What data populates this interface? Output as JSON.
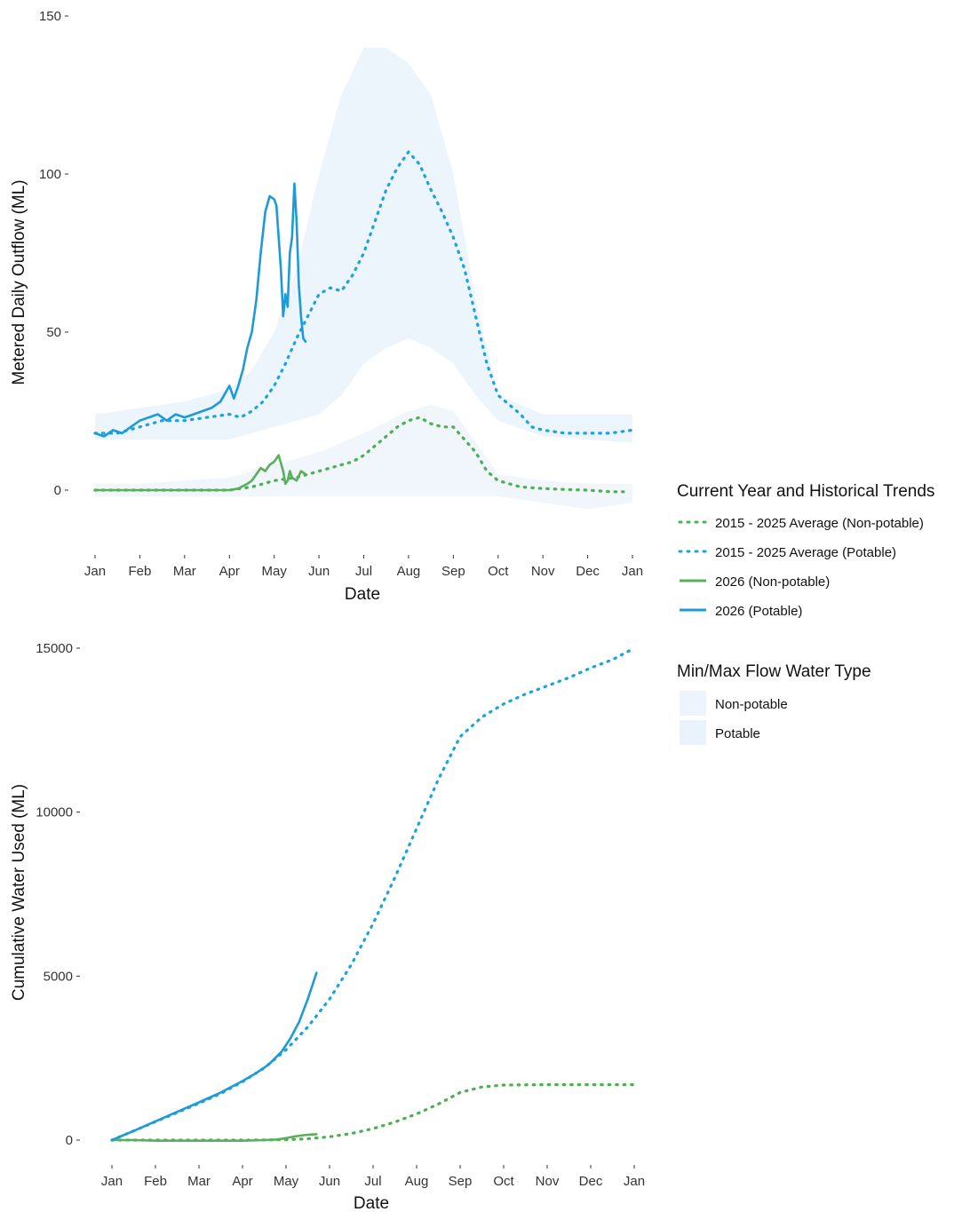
{
  "legend": {
    "lines_title": "Current Year and Historical Trends",
    "lines": [
      {
        "label": "2015 - 2025 Average (Non-potable)",
        "color": "#4CAF50",
        "style": "dotted"
      },
      {
        "label": "2015 - 2025 Average (Potable)",
        "color": "#1CA3DE",
        "style": "dotted"
      },
      {
        "label": "2026 (Non-potable)",
        "color": "#5BAF5B",
        "style": "solid"
      },
      {
        "label": "2026 (Potable)",
        "color": "#1E9AD6",
        "style": "solid"
      }
    ],
    "fills_title": "Min/Max Flow Water Type",
    "fills": [
      {
        "label": "Non-potable",
        "color": "#EDF4FB"
      },
      {
        "label": "Potable",
        "color": "#EAF3FC"
      }
    ]
  },
  "chart_data": [
    {
      "type": "line",
      "xlabel": "Date",
      "ylabel": "Metered Daily Outflow (ML)",
      "x_ticks": [
        "Jan",
        "Feb",
        "Mar",
        "Apr",
        "May",
        "Jun",
        "Jul",
        "Aug",
        "Sep",
        "Oct",
        "Nov",
        "Dec",
        "Jan"
      ],
      "y_ticks": [
        "0",
        "50",
        "100",
        "150"
      ],
      "xlim": [
        0,
        12
      ],
      "ylim": [
        -20,
        150
      ],
      "grid": false,
      "bands": [
        {
          "name": "Potable",
          "color": "#EAF3FC",
          "x": [
            0,
            1,
            2,
            3,
            3.5,
            4,
            4.5,
            5,
            5.5,
            6,
            6.5,
            7,
            7.5,
            8,
            8.5,
            9,
            10,
            11,
            12
          ],
          "lower": [
            16,
            16,
            16,
            16,
            18,
            20,
            22,
            24,
            30,
            40,
            45,
            48,
            45,
            40,
            30,
            22,
            17,
            16,
            15
          ],
          "upper": [
            24,
            26,
            28,
            32,
            38,
            50,
            70,
            100,
            125,
            140,
            140,
            135,
            125,
            100,
            60,
            30,
            24,
            24,
            24
          ]
        },
        {
          "name": "Non-potable",
          "color": "#EDF4FB",
          "x": [
            0,
            1,
            2,
            3,
            4,
            5,
            6,
            7,
            7.5,
            8,
            8.5,
            9,
            10,
            11,
            12
          ],
          "lower": [
            -2,
            -2,
            -2,
            -2,
            -2,
            -2,
            -2,
            -2,
            -2,
            -2,
            -2,
            -2,
            -4,
            -6,
            -4
          ],
          "upper": [
            2,
            2,
            3,
            4,
            8,
            12,
            18,
            25,
            27,
            25,
            15,
            5,
            3,
            2,
            2
          ]
        }
      ],
      "series": [
        {
          "name": "2015 - 2025 Average (Non-potable)",
          "color": "#4CAF50",
          "style": "dotted",
          "x": [
            0,
            0.5,
            1,
            1.5,
            2,
            2.5,
            3,
            3.25,
            3.5,
            3.75,
            4,
            4.25,
            4.5,
            4.75,
            5,
            5.25,
            5.5,
            5.75,
            6,
            6.25,
            6.5,
            6.75,
            7,
            7.25,
            7.5,
            7.75,
            8,
            8.25,
            8.5,
            8.75,
            9,
            9.5,
            10,
            10.5,
            11,
            11.5,
            11.8
          ],
          "y": [
            0,
            0,
            0,
            0,
            0,
            0,
            0,
            0.5,
            1,
            2,
            3,
            3.5,
            4,
            5,
            6,
            7,
            8,
            9,
            11,
            14,
            17,
            20,
            22,
            23,
            21,
            20,
            20,
            16,
            12,
            6,
            3,
            1,
            0.5,
            0.2,
            0,
            -0.5,
            -0.5
          ]
        },
        {
          "name": "2015 - 2025 Average (Potable)",
          "color": "#1CA3DE",
          "style": "dotted",
          "x": [
            0,
            0.5,
            1,
            1.5,
            2,
            2.5,
            3,
            3.25,
            3.5,
            3.75,
            4,
            4.25,
            4.5,
            4.75,
            5,
            5.25,
            5.5,
            5.75,
            6,
            6.25,
            6.5,
            6.75,
            7,
            7.25,
            7.5,
            7.75,
            8,
            8.25,
            8.5,
            8.75,
            9,
            9.25,
            9.5,
            9.75,
            10,
            10.5,
            11,
            11.5,
            12
          ],
          "y": [
            18,
            18,
            20,
            22,
            22,
            23,
            24,
            23,
            25,
            28,
            33,
            40,
            48,
            55,
            62,
            64,
            63,
            68,
            75,
            85,
            95,
            102,
            107,
            103,
            95,
            88,
            80,
            70,
            55,
            40,
            30,
            27,
            24,
            20,
            19,
            18,
            18,
            18,
            19
          ]
        },
        {
          "name": "2026 (Non-potable)",
          "color": "#5BAF5B",
          "style": "solid",
          "x": [
            0,
            0.5,
            1,
            1.5,
            2,
            2.5,
            3,
            3.2,
            3.4,
            3.5,
            3.6,
            3.7,
            3.8,
            3.9,
            4.0,
            4.1,
            4.2,
            4.25,
            4.3,
            4.35,
            4.4,
            4.5,
            4.6,
            4.7
          ],
          "y": [
            0,
            0,
            0,
            0,
            0,
            0,
            0,
            0.5,
            2,
            3,
            5,
            7,
            6,
            8,
            9,
            11,
            6,
            2,
            3,
            6,
            4,
            3,
            6,
            5
          ]
        },
        {
          "name": "2026 (Potable)",
          "color": "#1E9AD6",
          "style": "solid",
          "x": [
            0,
            0.2,
            0.4,
            0.6,
            0.8,
            1.0,
            1.2,
            1.4,
            1.6,
            1.8,
            2.0,
            2.2,
            2.4,
            2.6,
            2.8,
            3.0,
            3.1,
            3.2,
            3.3,
            3.4,
            3.5,
            3.6,
            3.7,
            3.8,
            3.9,
            4.0,
            4.05,
            4.1,
            4.15,
            4.2,
            4.25,
            4.3,
            4.35,
            4.4,
            4.45,
            4.5,
            4.55,
            4.6,
            4.65,
            4.7
          ],
          "y": [
            18,
            17,
            19,
            18,
            20,
            22,
            23,
            24,
            22,
            24,
            23,
            24,
            25,
            26,
            28,
            33,
            29,
            33,
            38,
            45,
            50,
            60,
            75,
            88,
            93,
            92,
            90,
            80,
            70,
            55,
            62,
            58,
            75,
            80,
            97,
            85,
            65,
            55,
            48,
            47
          ]
        }
      ]
    },
    {
      "type": "line",
      "xlabel": "Date",
      "ylabel": "Cumulative Water Used (ML)",
      "x_ticks": [
        "Jan",
        "Feb",
        "Mar",
        "Apr",
        "May",
        "Jun",
        "Jul",
        "Aug",
        "Sep",
        "Oct",
        "Nov",
        "Dec",
        "Jan"
      ],
      "y_ticks": [
        "0",
        "5000",
        "10000",
        "15000"
      ],
      "xlim": [
        0,
        12
      ],
      "ylim": [
        -600,
        16000
      ],
      "grid": false,
      "series": [
        {
          "name": "2015 - 2025 Average (Non-potable)",
          "color": "#4CAF50",
          "style": "dotted",
          "x": [
            0,
            1,
            2,
            3,
            4,
            4.5,
            5,
            5.5,
            6,
            6.5,
            7,
            7.5,
            8,
            8.5,
            9,
            10,
            11,
            12
          ],
          "y": [
            0,
            0,
            0,
            0,
            10,
            40,
            100,
            200,
            350,
            550,
            800,
            1100,
            1450,
            1620,
            1680,
            1690,
            1690,
            1690
          ]
        },
        {
          "name": "2015 - 2025 Average (Potable)",
          "color": "#1CA3DE",
          "style": "dotted",
          "x": [
            0,
            0.5,
            1,
            1.5,
            2,
            2.5,
            3,
            3.5,
            4,
            4.5,
            5,
            5.5,
            6,
            6.5,
            7,
            7.5,
            8,
            8.5,
            9,
            9.5,
            10,
            10.5,
            11,
            11.5,
            12
          ],
          "y": [
            0,
            280,
            560,
            840,
            1120,
            1420,
            1780,
            2200,
            2750,
            3450,
            4300,
            5350,
            6600,
            8000,
            9500,
            11000,
            12300,
            12900,
            13300,
            13600,
            13850,
            14100,
            14400,
            14650,
            15000
          ]
        },
        {
          "name": "2026 (Non-potable)",
          "color": "#5BAF5B",
          "style": "solid",
          "x": [
            0,
            0.5,
            1,
            1.5,
            2,
            2.5,
            3,
            3.5,
            3.8,
            4.0,
            4.2,
            4.4,
            4.6,
            4.7
          ],
          "y": [
            0,
            0,
            -20,
            -20,
            -20,
            -20,
            -20,
            0,
            20,
            60,
            110,
            150,
            170,
            180
          ]
        },
        {
          "name": "2026 (Potable)",
          "color": "#1E9AD6",
          "style": "solid",
          "x": [
            0,
            0.5,
            1,
            1.5,
            2,
            2.5,
            3,
            3.3,
            3.6,
            3.9,
            4.1,
            4.3,
            4.5,
            4.7
          ],
          "y": [
            0,
            280,
            570,
            860,
            1150,
            1450,
            1800,
            2030,
            2300,
            2700,
            3100,
            3600,
            4300,
            5100
          ]
        }
      ]
    }
  ]
}
